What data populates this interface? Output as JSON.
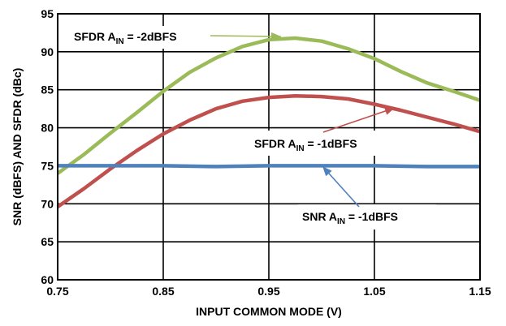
{
  "chart_data": {
    "type": "line",
    "title": "",
    "xlabel": "INPUT COMMON MODE (V)",
    "ylabel": "SNR (dBFS) AND SFDR (dBc)",
    "xlim": [
      0.75,
      1.15
    ],
    "ylim": [
      60,
      95
    ],
    "xticks": [
      0.75,
      0.85,
      0.95,
      1.05,
      1.15
    ],
    "xtick_labels": [
      "0.75",
      "0.85",
      "0.95",
      "1.05",
      "1.15"
    ],
    "yticks": [
      60,
      65,
      70,
      75,
      80,
      85,
      90,
      95
    ],
    "ytick_labels": [
      "60",
      "65",
      "70",
      "75",
      "80",
      "85",
      "90",
      "95"
    ],
    "grid": true,
    "series": [
      {
        "color": "#9bbb59",
        "x": [
          0.75,
          0.775,
          0.8,
          0.825,
          0.85,
          0.875,
          0.9,
          0.925,
          0.95,
          0.975,
          1.0,
          1.025,
          1.05,
          1.075,
          1.1,
          1.125,
          1.15
        ],
        "y": [
          74.0,
          76.5,
          79.3,
          82.0,
          84.8,
          87.3,
          89.2,
          90.7,
          91.6,
          91.8,
          91.4,
          90.4,
          89.1,
          87.4,
          85.9,
          84.8,
          83.6
        ]
      },
      {
        "color": "#c0504d",
        "x": [
          0.75,
          0.775,
          0.8,
          0.825,
          0.85,
          0.875,
          0.9,
          0.925,
          0.95,
          0.975,
          1.0,
          1.025,
          1.05,
          1.075,
          1.1,
          1.125,
          1.15
        ],
        "y": [
          69.6,
          72.0,
          74.6,
          77.0,
          79.2,
          81.0,
          82.5,
          83.5,
          84.0,
          84.2,
          84.1,
          83.8,
          83.1,
          82.3,
          81.4,
          80.5,
          79.5
        ]
      },
      {
        "color": "#4f81bd",
        "x": [
          0.75,
          0.8,
          0.85,
          0.9,
          0.95,
          1.0,
          1.05,
          1.1,
          1.15
        ],
        "y": [
          75.0,
          75.0,
          75.0,
          74.9,
          75.0,
          75.0,
          75.0,
          74.9,
          74.9
        ]
      }
    ],
    "annotations": [
      {
        "main": "SFDR A",
        "sub": "IN",
        "rest": " = -2dBFS",
        "series_index": 0
      },
      {
        "main": "SFDR A",
        "sub": "IN",
        "rest": " = -1dBFS",
        "series_index": 1
      },
      {
        "main": "SNR A",
        "sub": "IN",
        "rest": " = -1dBFS",
        "series_index": 2
      }
    ]
  }
}
